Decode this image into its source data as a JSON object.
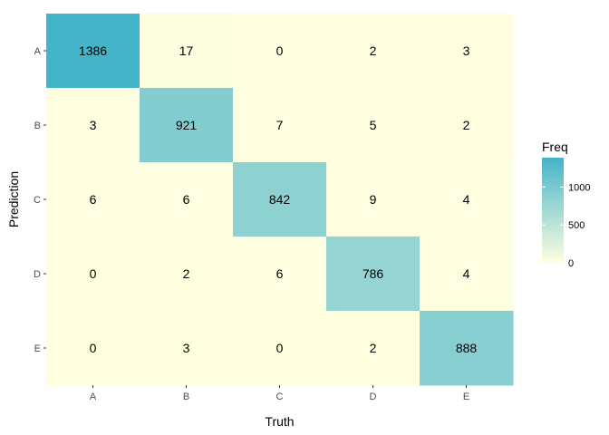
{
  "chart_data": {
    "type": "heatmap",
    "title": "",
    "xlabel": "Truth",
    "ylabel": "Prediction",
    "x_categories": [
      "A",
      "B",
      "C",
      "D",
      "E"
    ],
    "y_categories": [
      "A",
      "B",
      "C",
      "D",
      "E"
    ],
    "values": [
      [
        1386,
        17,
        0,
        2,
        3
      ],
      [
        3,
        921,
        7,
        5,
        2
      ],
      [
        6,
        6,
        842,
        9,
        4
      ],
      [
        0,
        2,
        6,
        786,
        4
      ],
      [
        0,
        3,
        0,
        2,
        888
      ]
    ],
    "value_note_rows": "rows are Prediction categories, columns are Truth categories",
    "legend": {
      "title": "Freq",
      "ticks": [
        0,
        500,
        1000
      ],
      "range": [
        0,
        1386
      ],
      "placement": "right"
    },
    "color_scale": {
      "low": "#ffffe0",
      "high": "#44b4c8"
    },
    "grid": false
  }
}
